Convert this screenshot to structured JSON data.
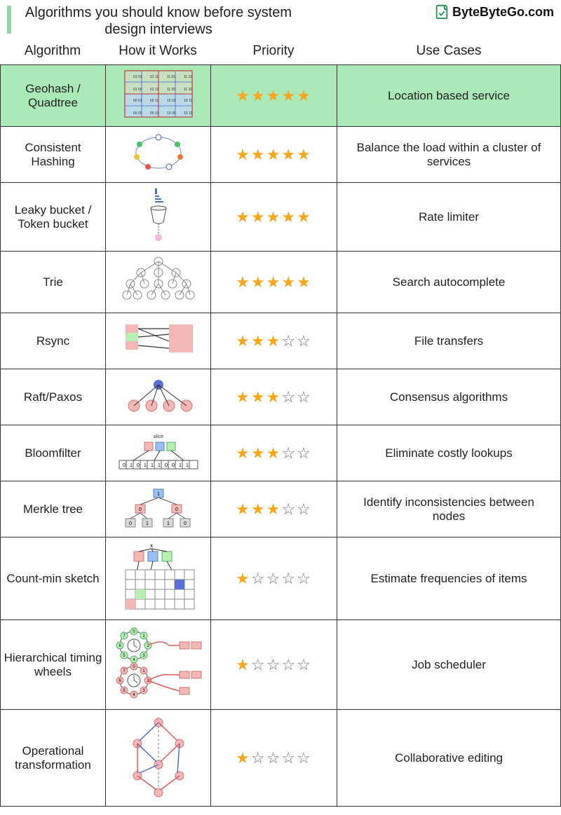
{
  "title": "Algorithms you should know before system design interviews",
  "brand": "ByteByteGo.com",
  "columns": [
    "Algorithm",
    "How it Works",
    "Priority",
    "Use Cases"
  ],
  "accent_color": "#8fd7a6",
  "highlight_bg": "#abe8b8",
  "star_color_filled": "#f5a623",
  "star_color_empty": "#777777",
  "border_color": "#353535",
  "max_stars": 5,
  "rows": [
    {
      "algorithm": "Geohash / Quadtree",
      "priority": 5,
      "use_case": "Location based service",
      "highlight": true,
      "diagram": "geohash"
    },
    {
      "algorithm": "Consistent Hashing",
      "priority": 5,
      "use_case": "Balance the load within a cluster of services",
      "highlight": false,
      "diagram": "ring"
    },
    {
      "algorithm": "Leaky bucket / Token bucket",
      "priority": 5,
      "use_case": "Rate limiter",
      "highlight": false,
      "diagram": "bucket"
    },
    {
      "algorithm": "Trie",
      "priority": 5,
      "use_case": "Search autocomplete",
      "highlight": false,
      "diagram": "trie"
    },
    {
      "algorithm": "Rsync",
      "priority": 3,
      "use_case": "File transfers",
      "highlight": false,
      "diagram": "rsync"
    },
    {
      "algorithm": "Raft/Paxos",
      "priority": 3,
      "use_case": "Consensus algorithms",
      "highlight": false,
      "diagram": "raft"
    },
    {
      "algorithm": "Bloomfilter",
      "priority": 3,
      "use_case": "Eliminate costly lookups",
      "highlight": false,
      "diagram": "bloom"
    },
    {
      "algorithm": "Merkle tree",
      "priority": 3,
      "use_case": "Identify inconsistencies between nodes",
      "highlight": false,
      "diagram": "merkle"
    },
    {
      "algorithm": "Count-min sketch",
      "priority": 1,
      "use_case": "Estimate frequencies of items",
      "highlight": false,
      "diagram": "cms"
    },
    {
      "algorithm": "Hierarchical timing wheels",
      "priority": 1,
      "use_case": "Job scheduler",
      "highlight": false,
      "diagram": "wheel"
    },
    {
      "algorithm": "Operational transformation",
      "priority": 1,
      "use_case": "Collaborative editing",
      "highlight": false,
      "diagram": "ot"
    }
  ],
  "diagram_style": {
    "pink": "#f3b7b7",
    "green": "#b7efb0",
    "blue": "#5b6fd6",
    "blue2": "#9bbef3",
    "gray": "#d9d9d9",
    "stroke": "#555555",
    "red_line": "#e05a5a",
    "blue_line": "#4a6fd4"
  }
}
